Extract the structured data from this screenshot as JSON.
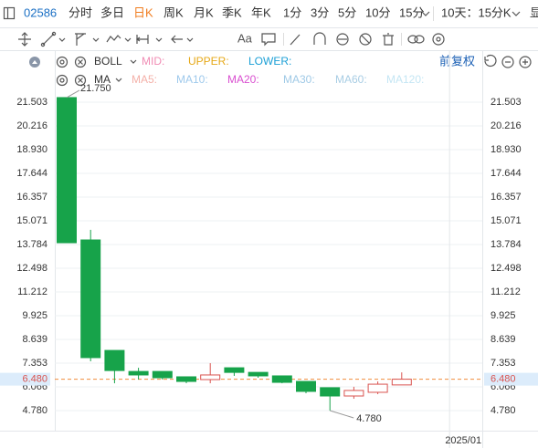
{
  "toolbar": {
    "code": "02586",
    "periods": [
      "分时",
      "多日",
      "日K",
      "周K",
      "月K",
      "季K",
      "年K",
      "1分",
      "3分",
      "5分",
      "10分",
      "15分"
    ],
    "active_period": 2,
    "range": "10天：15分K",
    "more": "显",
    "text_tool": "Aa"
  },
  "indicators": {
    "boll": {
      "name": "BOLL",
      "fields": [
        {
          "text": "MID:",
          "color": "#f08cb4"
        },
        {
          "text": "UPPER:",
          "color": "#e6a817"
        },
        {
          "text": "LOWER:",
          "color": "#1a9fd6"
        }
      ]
    },
    "ma": {
      "name": "MA",
      "fields": [
        {
          "text": "MA5:",
          "color": "#f4b0a8"
        },
        {
          "text": "MA10:",
          "color": "#9ec9ec"
        },
        {
          "text": "MA20:",
          "color": "#d94fd0"
        },
        {
          "text": "MA30:",
          "color": "#9fc9e6"
        },
        {
          "text": "MA60:",
          "color": "#a8cde4"
        },
        {
          "text": "MA120:",
          "color": "#c4e6f4"
        }
      ]
    },
    "adjust": "前复权"
  },
  "chart_data": {
    "type": "candlestick",
    "categories": [
      null,
      null,
      null,
      null,
      null,
      null,
      null,
      null,
      null,
      null,
      null,
      null,
      null,
      null,
      null,
      null,
      "2025/01",
      null
    ],
    "open": [
      21.75,
      14.03,
      8.04,
      6.9,
      6.9,
      6.61,
      6.46,
      7.1,
      6.85,
      6.66,
      6.36,
      6.02,
      5.57,
      5.77,
      6.17,
      null,
      null,
      null
    ],
    "high": [
      21.75,
      14.58,
      8.04,
      7.1,
      6.9,
      6.61,
      7.35,
      7.1,
      6.85,
      6.66,
      6.36,
      6.02,
      6.07,
      6.36,
      6.85,
      null,
      null,
      null
    ],
    "low": [
      13.88,
      7.45,
      6.26,
      6.46,
      6.46,
      6.26,
      6.26,
      6.66,
      6.56,
      6.26,
      5.72,
      4.78,
      5.42,
      5.67,
      6.17,
      null,
      null,
      null
    ],
    "close": [
      13.88,
      7.65,
      6.95,
      6.71,
      6.56,
      6.36,
      6.71,
      6.85,
      6.66,
      6.31,
      5.82,
      5.57,
      5.87,
      6.21,
      6.48,
      null,
      null,
      null
    ],
    "up_color": "#d9534f",
    "down_color": "#17a34a",
    "ylim": [
      3.69,
      24.32
    ],
    "yticks": [
      21.503,
      20.216,
      {
        "value": 18.93,
        "label": "18.930"
      },
      17.644,
      16.357,
      15.071,
      13.784,
      12.498,
      11.212,
      9.925,
      8.639,
      7.353,
      6.066,
      {
        "value": 4.78,
        "label": "4.780"
      }
    ],
    "grid": true,
    "high_label": {
      "value": 21.75,
      "label": "21.750"
    },
    "low_label": {
      "value": 4.78,
      "label": "4.780"
    },
    "last_price": {
      "value": 6.48,
      "label": "6.480"
    },
    "last_price_color": "#f08c3c"
  }
}
